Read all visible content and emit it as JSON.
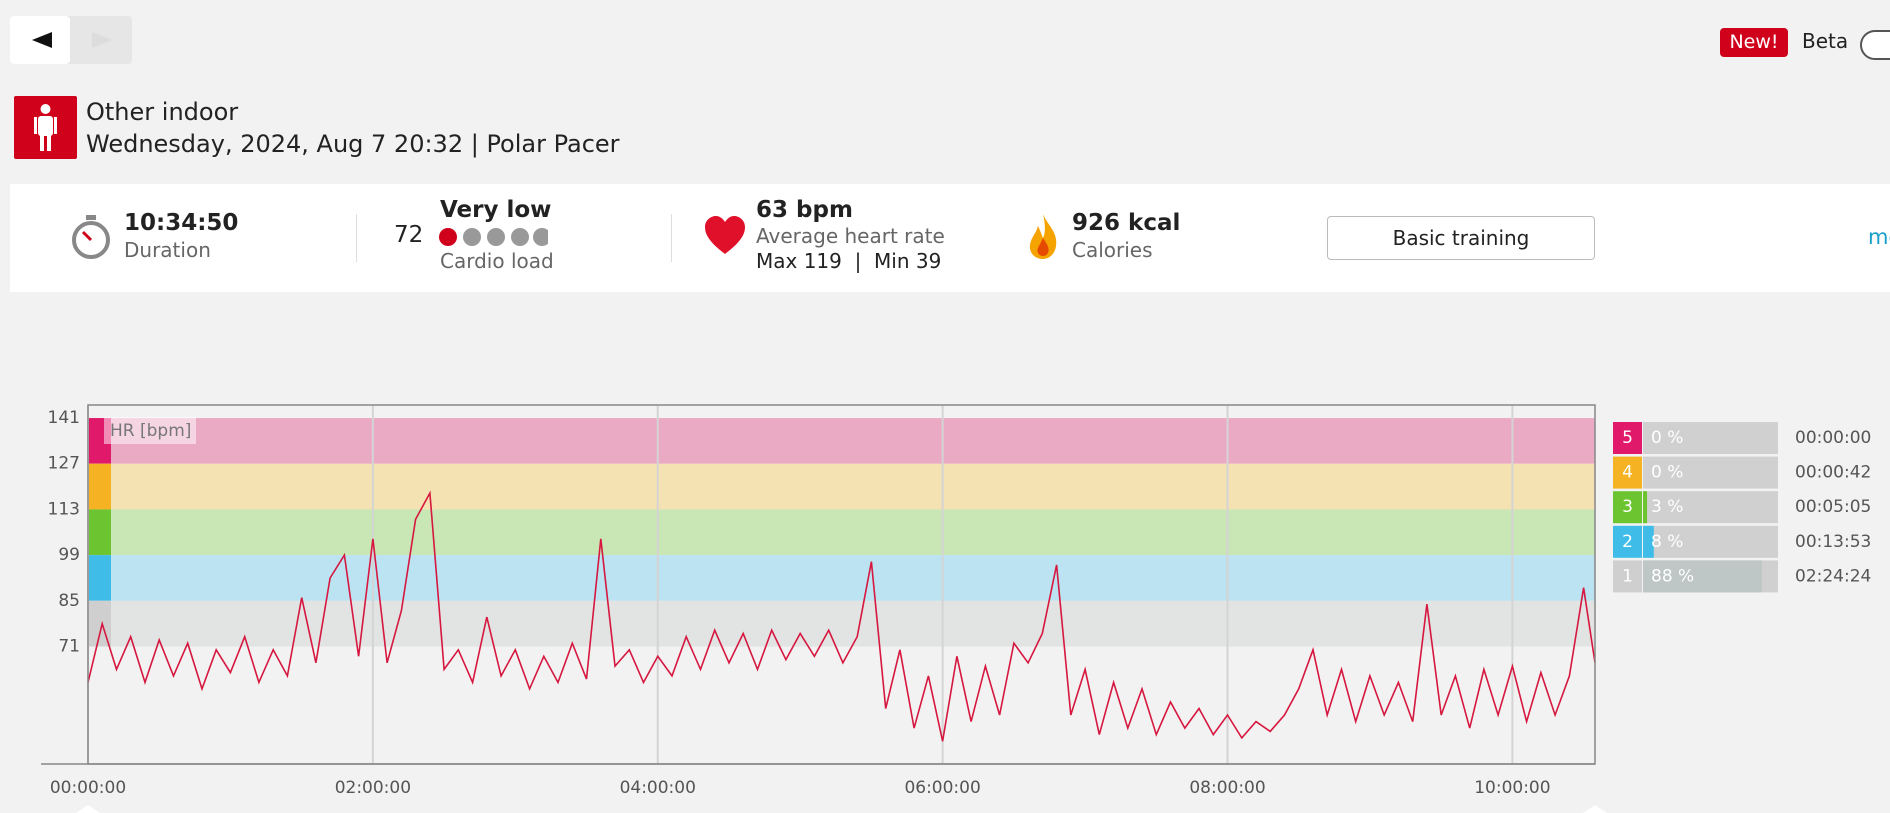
{
  "badge": "New!",
  "beta": "Beta",
  "header": {
    "sport": "Other indoor",
    "subtitle": "Wednesday, 2024, Aug 7 20:32 | Polar Pacer"
  },
  "summary": {
    "duration": "10:34:50",
    "duration_label": "Duration",
    "cardio_value": 72,
    "cardio_level": "Very low",
    "cardio_label": "Cardio load",
    "avg_hr": "63 bpm",
    "avg_hr_label": "Average heart rate",
    "hr_range": "Max 119  |  Min 39",
    "calories": "926 kcal",
    "calories_label": "Calories",
    "button": "Basic training",
    "more": "more"
  },
  "chart_data": {
    "type": "line",
    "ylabel": "HR [bpm]",
    "x": [
      0,
      0.1,
      0.2,
      0.3,
      0.4,
      0.5,
      0.6,
      0.7,
      0.8,
      0.9,
      1.0,
      1.1,
      1.2,
      1.3,
      1.4,
      1.5,
      1.6,
      1.7,
      1.8,
      1.9,
      2.0,
      2.1,
      2.2,
      2.3,
      2.4,
      2.5,
      2.6,
      2.7,
      2.8,
      2.9,
      3.0,
      3.1,
      3.2,
      3.3,
      3.4,
      3.5,
      3.6,
      3.7,
      3.8,
      3.9,
      4.0,
      4.1,
      4.2,
      4.3,
      4.4,
      4.5,
      4.6,
      4.7,
      4.8,
      4.9,
      5.0,
      5.1,
      5.2,
      5.3,
      5.4,
      5.5,
      5.6,
      5.7,
      5.8,
      5.9,
      6.0,
      6.1,
      6.2,
      6.3,
      6.4,
      6.5,
      6.6,
      6.7,
      6.8,
      6.9,
      7.0,
      7.1,
      7.2,
      7.3,
      7.4,
      7.5,
      7.6,
      7.7,
      7.8,
      7.9,
      8.0,
      8.1,
      8.2,
      8.3,
      8.4,
      8.5,
      8.6,
      8.7,
      8.8,
      8.9,
      9.0,
      9.1,
      9.2,
      9.3,
      9.4,
      9.5,
      9.6,
      9.7,
      9.8,
      9.9,
      10.0,
      10.1,
      10.2,
      10.3,
      10.4,
      10.5,
      10.58
    ],
    "series": [
      {
        "color": "#d6173f",
        "values": [
          60,
          78,
          64,
          74,
          60,
          73,
          62,
          72,
          58,
          70,
          63,
          74,
          60,
          70,
          62,
          86,
          66,
          92,
          99,
          68,
          104,
          66,
          82,
          110,
          118,
          64,
          70,
          60,
          80,
          62,
          70,
          58,
          68,
          60,
          72,
          61,
          104,
          65,
          70,
          60,
          68,
          62,
          74,
          64,
          76,
          66,
          75,
          64,
          76,
          67,
          75,
          68,
          76,
          66,
          74,
          97,
          52,
          70,
          46,
          62,
          42,
          68,
          48,
          65,
          50,
          72,
          66,
          75,
          96,
          50,
          64,
          44,
          60,
          46,
          58,
          44,
          54,
          46,
          52,
          44,
          50,
          43,
          48,
          45,
          50,
          58,
          70,
          50,
          64,
          48,
          62,
          50,
          60,
          48,
          84,
          50,
          62,
          46,
          64,
          50,
          65,
          48,
          63,
          50,
          62,
          89,
          66
        ]
      }
    ],
    "xlim": [
      0,
      10.58
    ],
    "xticks": [
      {
        "value": 0,
        "label": "00:00:00"
      },
      {
        "value": 2,
        "label": "02:00:00"
      },
      {
        "value": 4,
        "label": "04:00:00"
      },
      {
        "value": 6,
        "label": "06:00:00"
      },
      {
        "value": 8,
        "label": "08:00:00"
      },
      {
        "value": 10,
        "label": "10:00:00"
      }
    ],
    "ylim": [
      35,
      145
    ],
    "yticks": [
      71,
      85,
      99,
      113,
      127,
      141
    ],
    "grid": true,
    "zones": {
      "names": [
        "5",
        "4",
        "3",
        "2",
        "1"
      ],
      "values": [
        0,
        0,
        3,
        8,
        88
      ],
      "value_labels": [
        "0 %",
        "0 %",
        "3 %",
        "8 %",
        "88 %"
      ],
      "times": [
        "00:00:00",
        "00:00:42",
        "00:05:05",
        "00:13:53",
        "02:24:24"
      ],
      "colors": [
        "#e0196a",
        "#f5b324",
        "#6cc530",
        "#3fbde8",
        "#cfcfcf"
      ],
      "band_colors": [
        "#ebaac4",
        "#f5e2b2",
        "#c9e6b5",
        "#bce3f1",
        "#e2e3e3"
      ]
    }
  }
}
